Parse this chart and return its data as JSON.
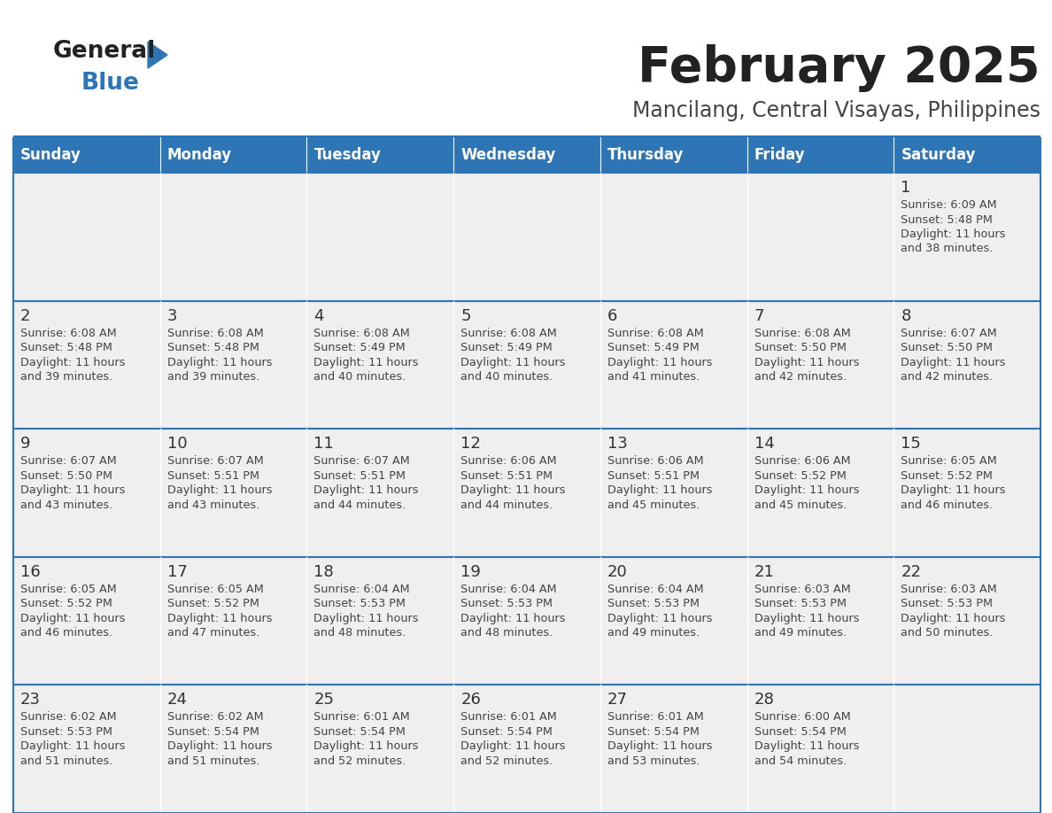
{
  "title": "February 2025",
  "subtitle": "Mancilang, Central Visayas, Philippines",
  "days_of_week": [
    "Sunday",
    "Monday",
    "Tuesday",
    "Wednesday",
    "Thursday",
    "Friday",
    "Saturday"
  ],
  "header_bg": "#2E75B6",
  "header_text": "#FFFFFF",
  "cell_bg_light": "#EFEFEF",
  "cell_bg_white": "#FFFFFF",
  "border_color": "#2E75B6",
  "text_color": "#333333",
  "day_num_color": "#333333",
  "title_color": "#222222",
  "subtitle_color": "#444444",
  "logo_general_color": "#222222",
  "logo_blue_color": "#2E75B6",
  "calendar_data": [
    [
      null,
      null,
      null,
      null,
      null,
      null,
      {
        "day": 1,
        "sunrise": "6:09 AM",
        "sunset": "5:48 PM",
        "daylight_hours": 11,
        "daylight_minutes": 38
      }
    ],
    [
      {
        "day": 2,
        "sunrise": "6:08 AM",
        "sunset": "5:48 PM",
        "daylight_hours": 11,
        "daylight_minutes": 39
      },
      {
        "day": 3,
        "sunrise": "6:08 AM",
        "sunset": "5:48 PM",
        "daylight_hours": 11,
        "daylight_minutes": 39
      },
      {
        "day": 4,
        "sunrise": "6:08 AM",
        "sunset": "5:49 PM",
        "daylight_hours": 11,
        "daylight_minutes": 40
      },
      {
        "day": 5,
        "sunrise": "6:08 AM",
        "sunset": "5:49 PM",
        "daylight_hours": 11,
        "daylight_minutes": 40
      },
      {
        "day": 6,
        "sunrise": "6:08 AM",
        "sunset": "5:49 PM",
        "daylight_hours": 11,
        "daylight_minutes": 41
      },
      {
        "day": 7,
        "sunrise": "6:08 AM",
        "sunset": "5:50 PM",
        "daylight_hours": 11,
        "daylight_minutes": 42
      },
      {
        "day": 8,
        "sunrise": "6:07 AM",
        "sunset": "5:50 PM",
        "daylight_hours": 11,
        "daylight_minutes": 42
      }
    ],
    [
      {
        "day": 9,
        "sunrise": "6:07 AM",
        "sunset": "5:50 PM",
        "daylight_hours": 11,
        "daylight_minutes": 43
      },
      {
        "day": 10,
        "sunrise": "6:07 AM",
        "sunset": "5:51 PM",
        "daylight_hours": 11,
        "daylight_minutes": 43
      },
      {
        "day": 11,
        "sunrise": "6:07 AM",
        "sunset": "5:51 PM",
        "daylight_hours": 11,
        "daylight_minutes": 44
      },
      {
        "day": 12,
        "sunrise": "6:06 AM",
        "sunset": "5:51 PM",
        "daylight_hours": 11,
        "daylight_minutes": 44
      },
      {
        "day": 13,
        "sunrise": "6:06 AM",
        "sunset": "5:51 PM",
        "daylight_hours": 11,
        "daylight_minutes": 45
      },
      {
        "day": 14,
        "sunrise": "6:06 AM",
        "sunset": "5:52 PM",
        "daylight_hours": 11,
        "daylight_minutes": 45
      },
      {
        "day": 15,
        "sunrise": "6:05 AM",
        "sunset": "5:52 PM",
        "daylight_hours": 11,
        "daylight_minutes": 46
      }
    ],
    [
      {
        "day": 16,
        "sunrise": "6:05 AM",
        "sunset": "5:52 PM",
        "daylight_hours": 11,
        "daylight_minutes": 46
      },
      {
        "day": 17,
        "sunrise": "6:05 AM",
        "sunset": "5:52 PM",
        "daylight_hours": 11,
        "daylight_minutes": 47
      },
      {
        "day": 18,
        "sunrise": "6:04 AM",
        "sunset": "5:53 PM",
        "daylight_hours": 11,
        "daylight_minutes": 48
      },
      {
        "day": 19,
        "sunrise": "6:04 AM",
        "sunset": "5:53 PM",
        "daylight_hours": 11,
        "daylight_minutes": 48
      },
      {
        "day": 20,
        "sunrise": "6:04 AM",
        "sunset": "5:53 PM",
        "daylight_hours": 11,
        "daylight_minutes": 49
      },
      {
        "day": 21,
        "sunrise": "6:03 AM",
        "sunset": "5:53 PM",
        "daylight_hours": 11,
        "daylight_minutes": 49
      },
      {
        "day": 22,
        "sunrise": "6:03 AM",
        "sunset": "5:53 PM",
        "daylight_hours": 11,
        "daylight_minutes": 50
      }
    ],
    [
      {
        "day": 23,
        "sunrise": "6:02 AM",
        "sunset": "5:53 PM",
        "daylight_hours": 11,
        "daylight_minutes": 51
      },
      {
        "day": 24,
        "sunrise": "6:02 AM",
        "sunset": "5:54 PM",
        "daylight_hours": 11,
        "daylight_minutes": 51
      },
      {
        "day": 25,
        "sunrise": "6:01 AM",
        "sunset": "5:54 PM",
        "daylight_hours": 11,
        "daylight_minutes": 52
      },
      {
        "day": 26,
        "sunrise": "6:01 AM",
        "sunset": "5:54 PM",
        "daylight_hours": 11,
        "daylight_minutes": 52
      },
      {
        "day": 27,
        "sunrise": "6:01 AM",
        "sunset": "5:54 PM",
        "daylight_hours": 11,
        "daylight_minutes": 53
      },
      {
        "day": 28,
        "sunrise": "6:00 AM",
        "sunset": "5:54 PM",
        "daylight_hours": 11,
        "daylight_minutes": 54
      },
      null
    ]
  ]
}
